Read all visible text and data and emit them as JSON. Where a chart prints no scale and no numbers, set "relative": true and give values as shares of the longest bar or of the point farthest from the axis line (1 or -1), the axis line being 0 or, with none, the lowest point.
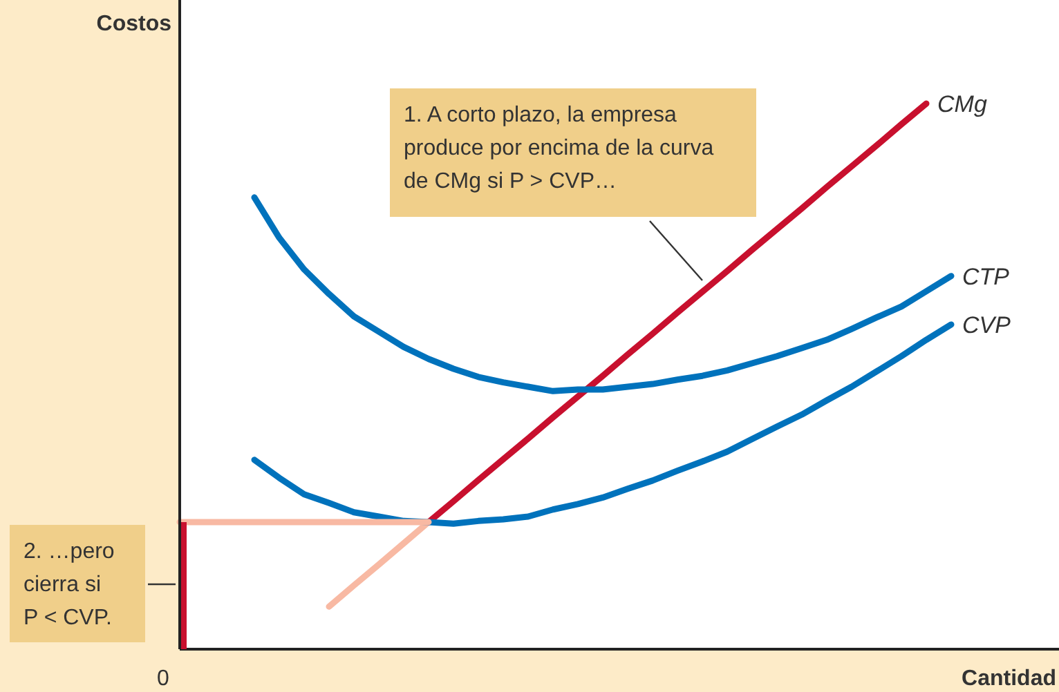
{
  "chart_data": {
    "type": "line",
    "relative": true,
    "xlabel": "Cantidad",
    "ylabel": "Costos",
    "categories": [
      null,
      null,
      null,
      null,
      null,
      null,
      null,
      null,
      null,
      null,
      null,
      null,
      null,
      null,
      null,
      null,
      null,
      null,
      null,
      null,
      null,
      null,
      null,
      null,
      null,
      null,
      null,
      null,
      null,
      null,
      null,
      null,
      null,
      null,
      null,
      null
    ],
    "series": [
      {
        "color": "#f8b9a3",
        "values": [
          null,
          null,
          null,
          null,
          null,
          null,
          0.078,
          0.117,
          0.155,
          0.194,
          0.233,
          null,
          null,
          null,
          null,
          null,
          null,
          null,
          null,
          null,
          null,
          null,
          null,
          null,
          null,
          null,
          null,
          null,
          null,
          null,
          null,
          null,
          null,
          null,
          null,
          null
        ]
      },
      {
        "name": "CMg",
        "color": "#c8102e",
        "values": [
          null,
          null,
          null,
          null,
          null,
          null,
          null,
          null,
          null,
          null,
          0.233,
          0.271,
          0.31,
          0.348,
          0.386,
          0.425,
          0.463,
          0.501,
          0.54,
          0.578,
          0.617,
          0.655,
          0.693,
          0.732,
          0.77,
          0.808,
          0.847,
          0.885,
          0.923,
          0.962,
          1.0,
          null,
          null,
          null,
          null,
          null
        ]
      },
      {
        "name": "CTP",
        "color": "#0072bc",
        "values": [
          null,
          null,
          null,
          0.828,
          0.754,
          0.696,
          0.651,
          0.61,
          0.582,
          0.554,
          0.532,
          0.514,
          0.499,
          0.489,
          0.481,
          0.473,
          0.476,
          0.476,
          0.481,
          0.486,
          0.494,
          0.501,
          0.511,
          0.524,
          0.537,
          0.552,
          0.567,
          0.587,
          0.608,
          0.628,
          0.656,
          0.684,
          null,
          null,
          null,
          null
        ]
      },
      {
        "name": "CVP",
        "color": "#0072bc",
        "values": [
          null,
          null,
          null,
          0.347,
          0.314,
          0.284,
          0.268,
          0.251,
          0.243,
          0.235,
          0.233,
          0.23,
          0.235,
          0.238,
          0.243,
          0.256,
          0.266,
          0.278,
          0.294,
          0.309,
          0.327,
          0.344,
          0.362,
          0.385,
          0.408,
          0.43,
          0.456,
          0.481,
          0.509,
          0.537,
          0.567,
          0.595,
          null,
          null,
          null,
          null
        ]
      },
      {
        "color": "#f8b9a3",
        "values": [
          0.233,
          0.233,
          0.233,
          0.233,
          0.233,
          0.233,
          0.233,
          0.233,
          0.233,
          0.233,
          0.233,
          null,
          null,
          null,
          null,
          null,
          null,
          null,
          null,
          null,
          null,
          null,
          null,
          null,
          null,
          null,
          null,
          null,
          null,
          null,
          null,
          null,
          null,
          null,
          null,
          null
        ]
      }
    ],
    "annotations": [
      "1. A corto plazo, la empresa produce por encima de la curva de CMg si P > CVP…",
      "2. …pero cierra si P < CVP.",
      "0"
    ]
  }
}
